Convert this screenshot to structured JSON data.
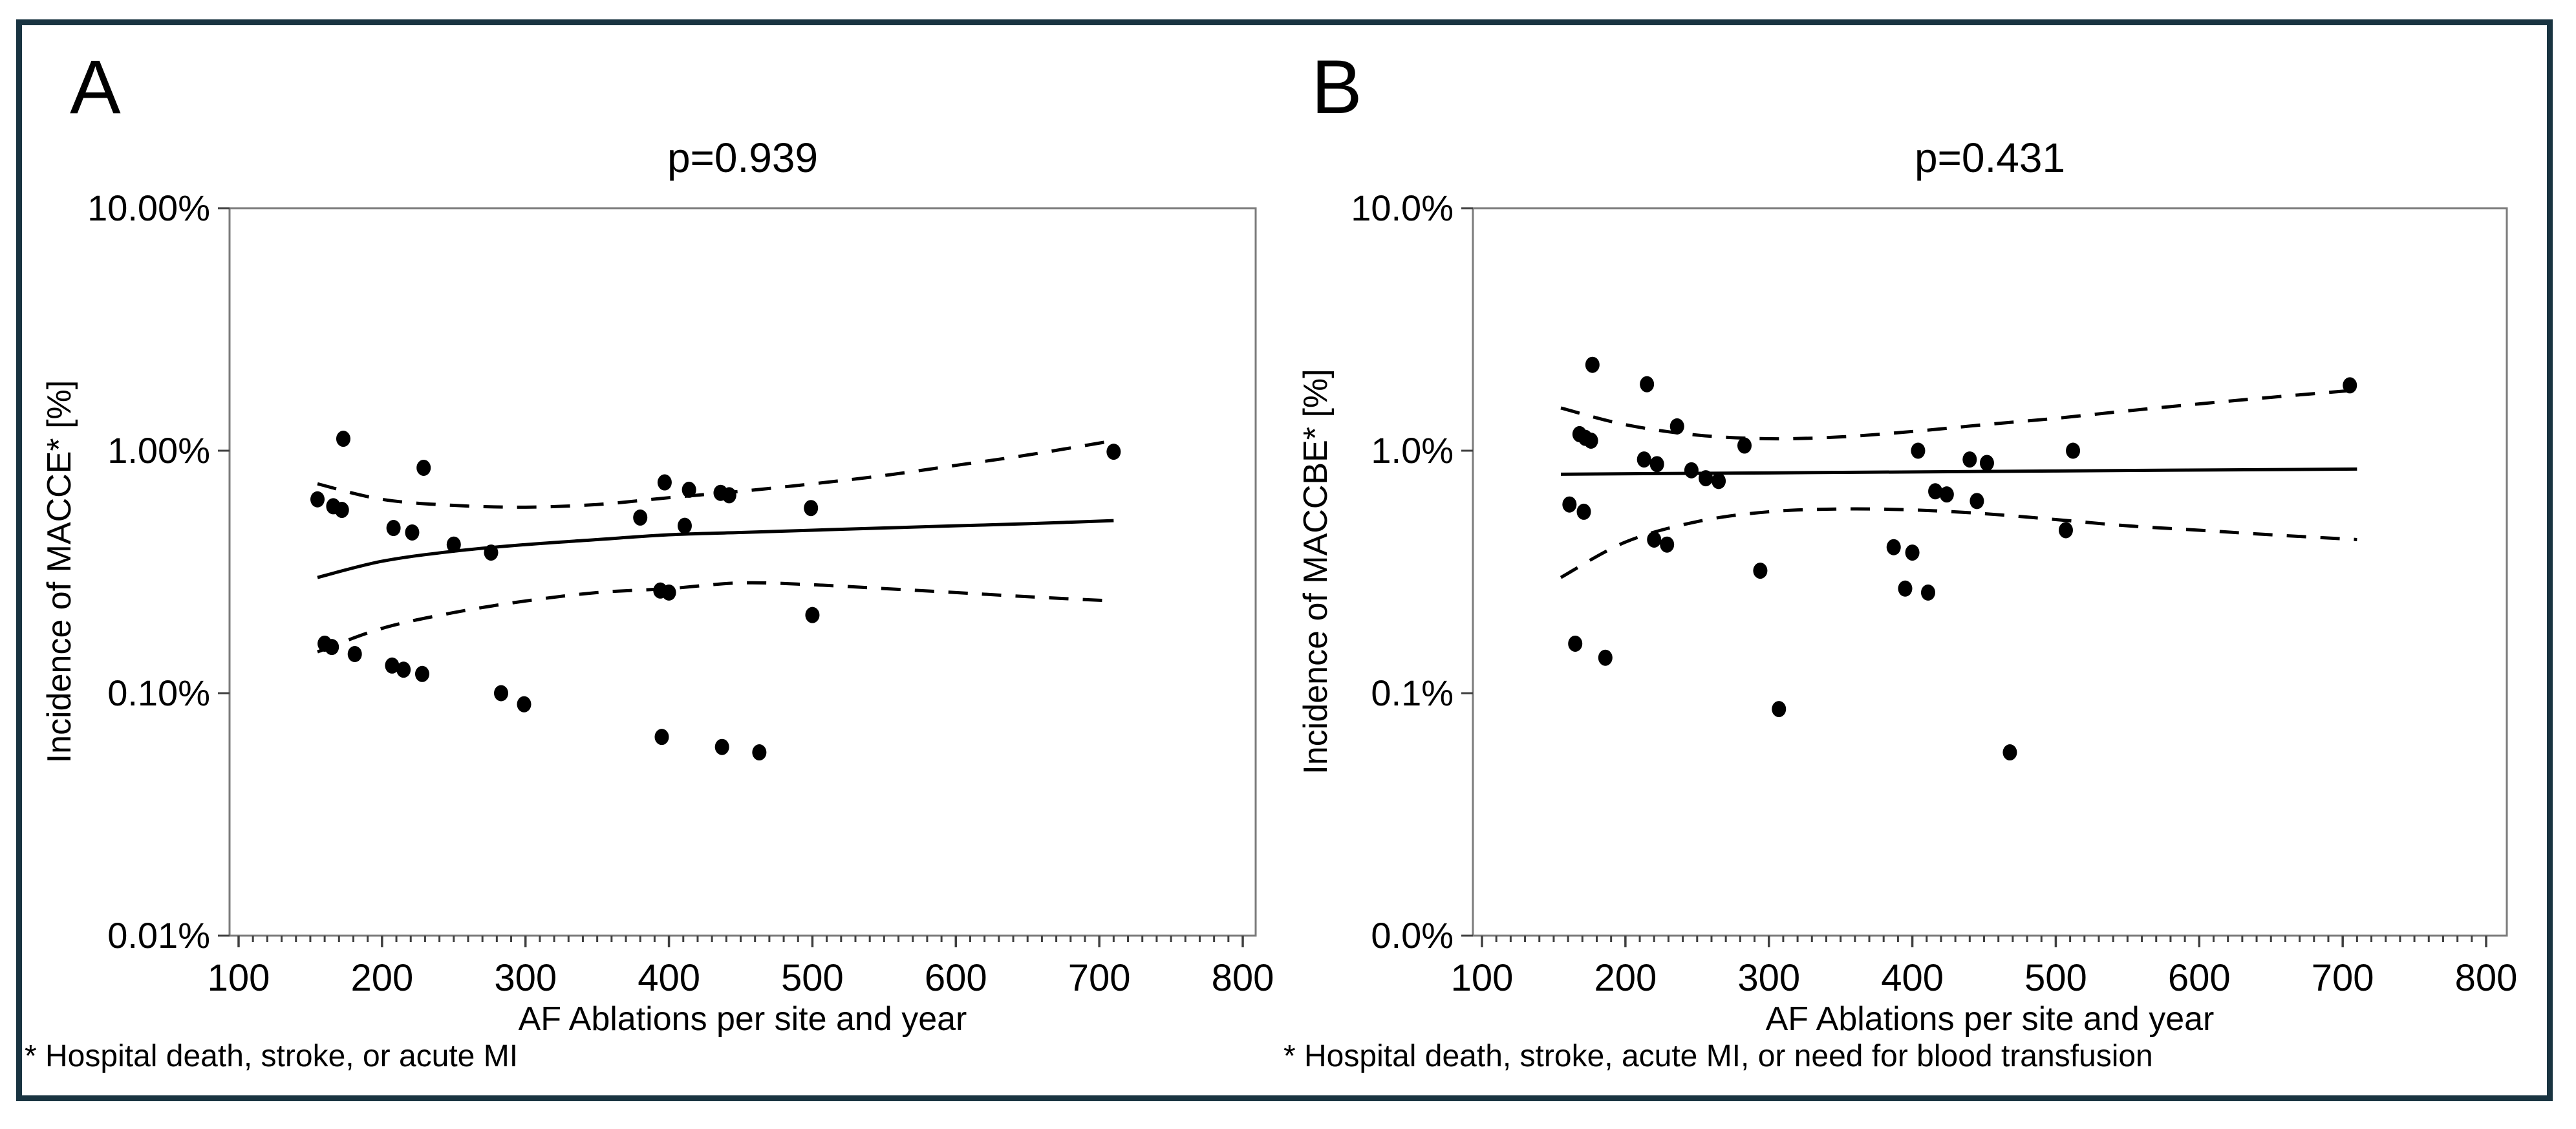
{
  "figure": {
    "border_color": "#193441",
    "background_color": "#ffffff",
    "text_color": "#000000",
    "plot_frame_color": "#7b7b7b",
    "tick_color": "#3f3f3f",
    "data_color": "#000000"
  },
  "chart_data": [
    {
      "type": "scatter",
      "panel_label": "A",
      "title": "p=0.939",
      "xlabel": "AF Ablations per site and year",
      "ylabel": "Incidence of MACCE* [%]",
      "footnote": "* Hospital death, stroke, or acute MI",
      "log_y": true,
      "xlim": [
        85,
        810
      ],
      "ylim": [
        0.01,
        10
      ],
      "x_ticks": [
        100,
        200,
        300,
        400,
        500,
        600,
        700,
        800
      ],
      "x_minor_tick_step": 10,
      "y_tick_values": [
        10,
        1,
        0.1,
        0.01
      ],
      "y_tick_labels": [
        "10.00%",
        "1.00%",
        "0.10%",
        "0.01%"
      ],
      "grid": false,
      "legend": "none",
      "points": [
        [
          155,
          0.63
        ],
        [
          166,
          0.59
        ],
        [
          172,
          0.57
        ],
        [
          173,
          1.12
        ],
        [
          160,
          0.16
        ],
        [
          165,
          0.155
        ],
        [
          181,
          0.145
        ],
        [
          207,
          0.13
        ],
        [
          208,
          0.48
        ],
        [
          215,
          0.125
        ],
        [
          221,
          0.46
        ],
        [
          228,
          0.12
        ],
        [
          229,
          0.85
        ],
        [
          250,
          0.41
        ],
        [
          276,
          0.38
        ],
        [
          283,
          0.1
        ],
        [
          299,
          0.09
        ],
        [
          380,
          0.53
        ],
        [
          394,
          0.265
        ],
        [
          395,
          0.066
        ],
        [
          397,
          0.74
        ],
        [
          400,
          0.26
        ],
        [
          411,
          0.49
        ],
        [
          414,
          0.69
        ],
        [
          436,
          0.67
        ],
        [
          442,
          0.655
        ],
        [
          437,
          0.06
        ],
        [
          463,
          0.057
        ],
        [
          499,
          0.58
        ],
        [
          500,
          0.21
        ],
        [
          710,
          0.99
        ]
      ],
      "series": [
        {
          "name": "fit",
          "style": "solid",
          "values": [
            [
              155,
              0.3
            ],
            [
              200,
              0.35
            ],
            [
              250,
              0.385
            ],
            [
              300,
              0.41
            ],
            [
              350,
              0.43
            ],
            [
              400,
              0.45
            ],
            [
              450,
              0.46
            ],
            [
              500,
              0.47
            ],
            [
              550,
              0.48
            ],
            [
              600,
              0.49
            ],
            [
              650,
              0.5
            ],
            [
              710,
              0.515
            ]
          ]
        },
        {
          "name": "ci_upper",
          "style": "dashed",
          "values": [
            [
              155,
              0.73
            ],
            [
              200,
              0.63
            ],
            [
              250,
              0.595
            ],
            [
              300,
              0.585
            ],
            [
              350,
              0.6
            ],
            [
              400,
              0.64
            ],
            [
              450,
              0.68
            ],
            [
              500,
              0.73
            ],
            [
              550,
              0.79
            ],
            [
              600,
              0.87
            ],
            [
              650,
              0.96
            ],
            [
              710,
              1.1
            ]
          ]
        },
        {
          "name": "ci_lower",
          "style": "dashed",
          "values": [
            [
              155,
              0.148
            ],
            [
              200,
              0.185
            ],
            [
              250,
              0.215
            ],
            [
              300,
              0.24
            ],
            [
              350,
              0.26
            ],
            [
              400,
              0.27
            ],
            [
              450,
              0.285
            ],
            [
              500,
              0.28
            ],
            [
              550,
              0.27
            ],
            [
              600,
              0.26
            ],
            [
              650,
              0.25
            ],
            [
              710,
              0.24
            ]
          ]
        }
      ]
    },
    {
      "type": "scatter",
      "panel_label": "B",
      "title": "p=0.431",
      "xlabel": "AF Ablations per site and year",
      "ylabel": "Incidence of MACCBE* [%]",
      "footnote": "* Hospital death, stroke, acute MI, or need for blood transfusion",
      "log_y": true,
      "xlim": [
        85,
        810
      ],
      "ylim": [
        0.01,
        10
      ],
      "x_ticks": [
        100,
        200,
        300,
        400,
        500,
        600,
        700,
        800
      ],
      "x_minor_tick_step": 10,
      "y_tick_values": [
        10,
        1,
        0.1,
        0.01
      ],
      "y_tick_labels": [
        "10.0%",
        "1.0%",
        "0.1%",
        "0.0%"
      ],
      "grid": false,
      "legend": "none",
      "points": [
        [
          161,
          0.6
        ],
        [
          165,
          0.16
        ],
        [
          168,
          1.17
        ],
        [
          171,
          0.56
        ],
        [
          172,
          1.13
        ],
        [
          176,
          1.1
        ],
        [
          177,
          2.26
        ],
        [
          186,
          0.14
        ],
        [
          213,
          0.92
        ],
        [
          215,
          1.88
        ],
        [
          220,
          0.43
        ],
        [
          222,
          0.88
        ],
        [
          229,
          0.41
        ],
        [
          236,
          1.26
        ],
        [
          246,
          0.83
        ],
        [
          256,
          0.77
        ],
        [
          265,
          0.75
        ],
        [
          283,
          1.05
        ],
        [
          294,
          0.32
        ],
        [
          307,
          0.086
        ],
        [
          387,
          0.4
        ],
        [
          395,
          0.27
        ],
        [
          400,
          0.38
        ],
        [
          404,
          1.0
        ],
        [
          411,
          0.26
        ],
        [
          416,
          0.68
        ],
        [
          424,
          0.66
        ],
        [
          440,
          0.92
        ],
        [
          445,
          0.62
        ],
        [
          452,
          0.89
        ],
        [
          468,
          0.057
        ],
        [
          507,
          0.47
        ],
        [
          512,
          1.0
        ],
        [
          705,
          1.86
        ]
      ],
      "series": [
        {
          "name": "fit",
          "style": "solid",
          "values": [
            [
              155,
              0.8
            ],
            [
              300,
              0.81
            ],
            [
              500,
              0.825
            ],
            [
              710,
              0.84
            ]
          ]
        },
        {
          "name": "ci_upper",
          "style": "dashed",
          "values": [
            [
              155,
              1.5
            ],
            [
              200,
              1.28
            ],
            [
              250,
              1.16
            ],
            [
              300,
              1.12
            ],
            [
              350,
              1.14
            ],
            [
              400,
              1.2
            ],
            [
              450,
              1.28
            ],
            [
              500,
              1.36
            ],
            [
              550,
              1.46
            ],
            [
              600,
              1.56
            ],
            [
              650,
              1.66
            ],
            [
              710,
              1.78
            ]
          ]
        },
        {
          "name": "ci_lower",
          "style": "dashed",
          "values": [
            [
              155,
              0.3
            ],
            [
              200,
              0.42
            ],
            [
              250,
              0.51
            ],
            [
              300,
              0.56
            ],
            [
              350,
              0.575
            ],
            [
              400,
              0.57
            ],
            [
              450,
              0.55
            ],
            [
              500,
              0.52
            ],
            [
              550,
              0.49
            ],
            [
              600,
              0.47
            ],
            [
              650,
              0.45
            ],
            [
              710,
              0.43
            ]
          ]
        }
      ]
    }
  ]
}
